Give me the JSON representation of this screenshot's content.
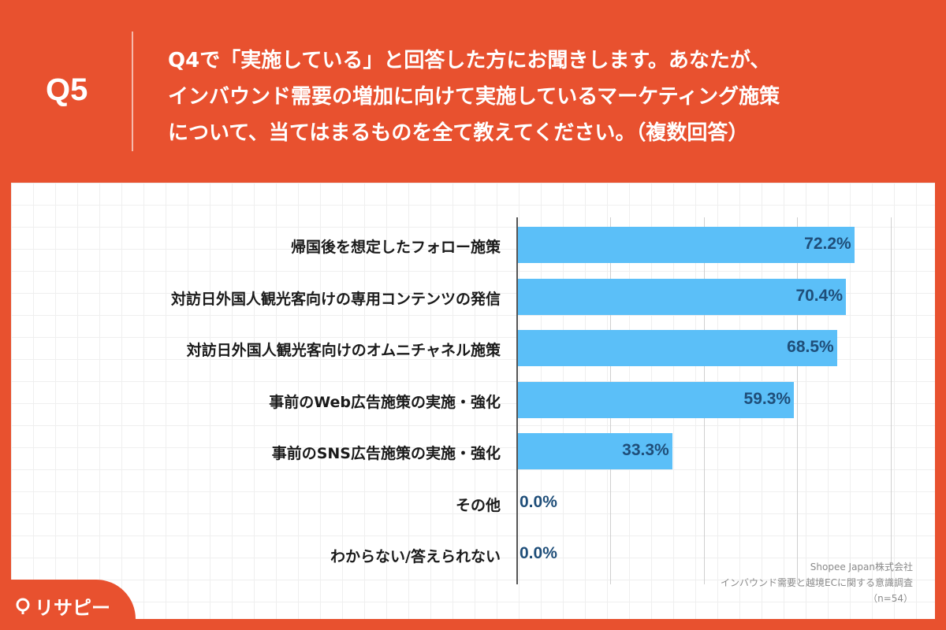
{
  "header": {
    "qnum": "Q5",
    "question_lines": [
      "Q4で「実施している」と回答した方にお聞きします。あなたが、",
      "インバウンド需要の増加に向けて実施しているマーケティング施策",
      "について、当てはまるものを全て教えてください。（複数回答）"
    ]
  },
  "chart_data": {
    "type": "bar",
    "orientation": "horizontal",
    "categories": [
      "帰国後を想定したフォロー施策",
      "対訪日外国人観光客向けの専用コンテンツの発信",
      "対訪日外国人観光客向けのオムニチャネル施策",
      "事前のWeb広告施策の実施・強化",
      "事前のSNS広告施策の実施・強化",
      "その他",
      "わからない/答えられない"
    ],
    "values": [
      72.2,
      70.4,
      68.5,
      59.3,
      33.3,
      0.0,
      0.0
    ],
    "value_labels": [
      "72.2%",
      "70.4%",
      "68.5%",
      "59.3%",
      "33.3%",
      "0.0%",
      "0.0%"
    ],
    "xlim": [
      0,
      80
    ],
    "grid": true,
    "bar_color": "#5BBFF8",
    "label_color": "#1F4E79"
  },
  "source": {
    "line1": "Shopee Japan株式会社",
    "line2": "インバウンド需要と越境ECに関する意識調査",
    "line3": "（n=54）"
  },
  "logo": {
    "text": "リサピー",
    "icon": "pin-icon"
  },
  "colors": {
    "accent": "#E8512F",
    "bar": "#5BBFF8"
  }
}
